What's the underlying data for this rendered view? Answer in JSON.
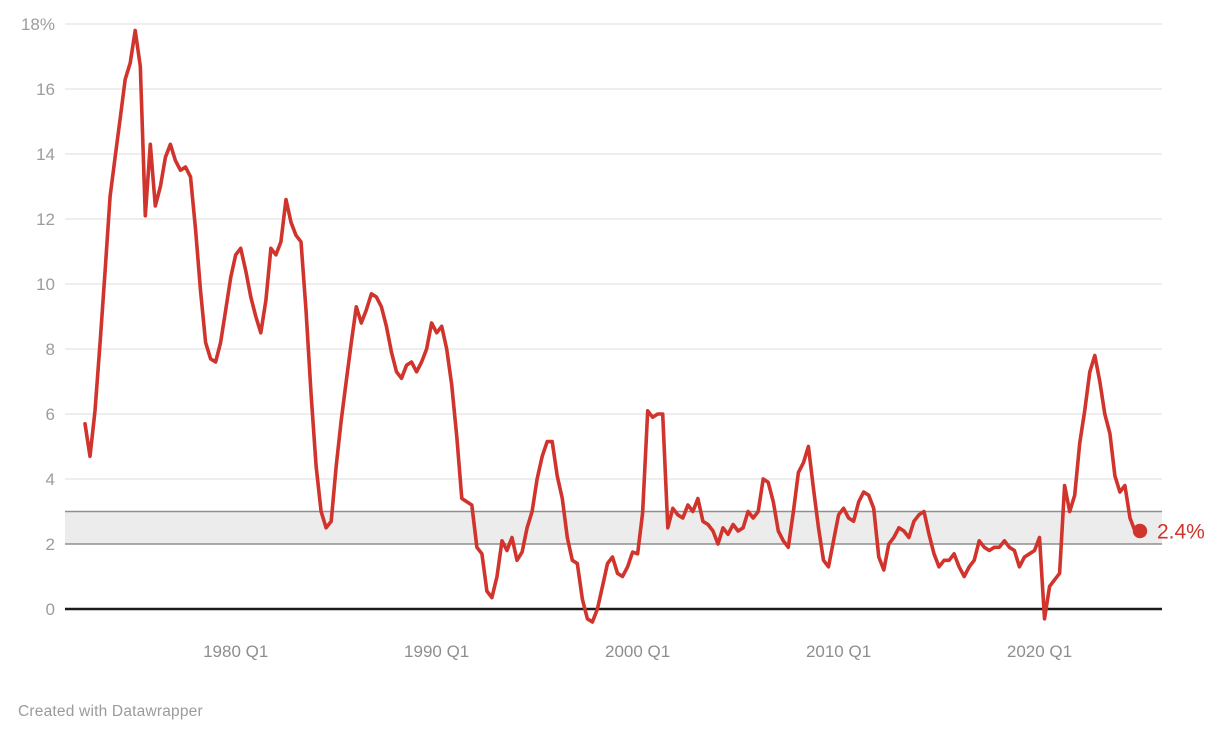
{
  "footer": {
    "credit": "Created with Datawrapper"
  },
  "colors": {
    "line": "#d0342c",
    "end_dot": "#d0342c",
    "end_label": "#d0342c",
    "band_fill": "#ececec",
    "band_border": "#8f8f8f",
    "gridline": "#e4e4e4",
    "zero_line": "#1a1a1a",
    "y_axis_label": "#9c9c9c",
    "x_axis_label": "#8e8e8e",
    "credit_text": "#9b9b9b"
  },
  "chart_data": {
    "type": "line",
    "title": "",
    "unit": "%",
    "frequency": "quarterly",
    "start_quarter": "1972 Q3",
    "end_quarter": "2025 Q1",
    "ylim": [
      0,
      18
    ],
    "y_ticks": [
      0,
      2,
      4,
      6,
      8,
      10,
      12,
      14,
      16,
      18
    ],
    "y_top_tick_label": "18%",
    "grid": true,
    "target_band": {
      "from": 2,
      "to": 3
    },
    "x_ticks": [
      {
        "label": "1980 Q1",
        "index": 30
      },
      {
        "label": "1990 Q1",
        "index": 70
      },
      {
        "label": "2000 Q1",
        "index": 110
      },
      {
        "label": "2010 Q1",
        "index": 150
      },
      {
        "label": "2020 Q1",
        "index": 190
      }
    ],
    "end_label": "2.4%",
    "end_value": 2.4,
    "values": [
      5.7,
      4.7,
      6.1,
      8.2,
      10.4,
      12.7,
      13.9,
      15.1,
      16.3,
      16.8,
      17.8,
      16.7,
      12.1,
      14.3,
      12.4,
      13.0,
      13.9,
      14.3,
      13.8,
      13.5,
      13.6,
      13.3,
      11.7,
      9.8,
      8.2,
      7.7,
      7.6,
      8.2,
      9.2,
      10.2,
      10.9,
      11.1,
      10.4,
      9.6,
      9.0,
      8.5,
      9.5,
      11.1,
      10.9,
      11.3,
      12.6,
      11.9,
      11.5,
      11.3,
      9.2,
      6.6,
      4.4,
      3.0,
      2.5,
      2.7,
      4.4,
      5.8,
      7.0,
      8.2,
      9.3,
      8.8,
      9.2,
      9.7,
      9.6,
      9.3,
      8.7,
      7.9,
      7.3,
      7.1,
      7.5,
      7.6,
      7.3,
      7.6,
      8.0,
      8.8,
      8.5,
      8.7,
      8.0,
      6.9,
      5.3,
      3.4,
      3.3,
      3.2,
      1.9,
      1.7,
      0.55,
      0.35,
      1.0,
      2.1,
      1.8,
      2.2,
      1.5,
      1.75,
      2.5,
      3.0,
      4.0,
      4.7,
      5.15,
      5.15,
      4.1,
      3.4,
      2.2,
      1.5,
      1.4,
      0.3,
      -0.3,
      -0.4,
      0.0,
      0.7,
      1.4,
      1.6,
      1.1,
      1.0,
      1.3,
      1.75,
      1.7,
      2.95,
      6.1,
      5.9,
      6.0,
      6.0,
      2.5,
      3.1,
      2.9,
      2.8,
      3.2,
      3.0,
      3.4,
      2.7,
      2.6,
      2.4,
      2.0,
      2.5,
      2.3,
      2.6,
      2.4,
      2.5,
      3.0,
      2.8,
      3.0,
      4.0,
      3.9,
      3.3,
      2.4,
      2.1,
      1.9,
      3.0,
      4.2,
      4.5,
      5.0,
      3.7,
      2.5,
      1.5,
      1.3,
      2.1,
      2.9,
      3.1,
      2.8,
      2.7,
      3.3,
      3.6,
      3.5,
      3.1,
      1.6,
      1.2,
      2.0,
      2.2,
      2.5,
      2.4,
      2.2,
      2.7,
      2.9,
      3.0,
      2.3,
      1.7,
      1.3,
      1.5,
      1.5,
      1.7,
      1.3,
      1.0,
      1.3,
      1.5,
      2.1,
      1.9,
      1.8,
      1.9,
      1.9,
      2.1,
      1.9,
      1.8,
      1.3,
      1.6,
      1.7,
      1.8,
      2.2,
      -0.3,
      0.7,
      0.9,
      1.1,
      3.8,
      3.0,
      3.5,
      5.1,
      6.1,
      7.3,
      7.8,
      7.0,
      6.0,
      5.4,
      4.1,
      3.6,
      3.8,
      2.8,
      2.4,
      2.4
    ]
  }
}
